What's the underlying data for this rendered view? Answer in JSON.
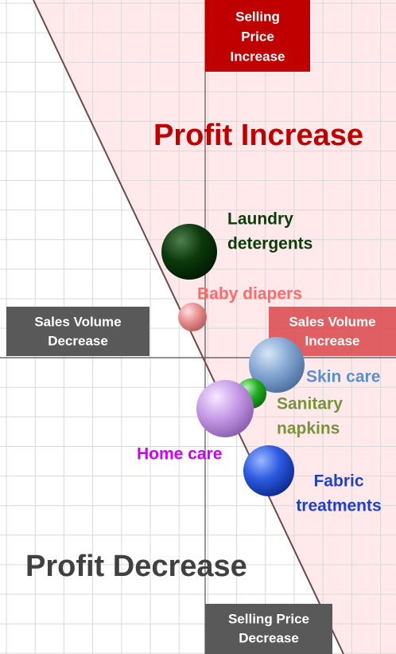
{
  "quadrants": {
    "top": [
      "Selling",
      "Price",
      "Increase"
    ],
    "bottom": [
      "Selling Price",
      "Decrease"
    ],
    "left": [
      "Sales Volume",
      "Decrease"
    ],
    "right": [
      "Sales Volume",
      "Increase"
    ],
    "gain": "Profit Increase",
    "loss": "Profit Decrease"
  },
  "bubbles": [
    {
      "label": [
        "Laundry",
        "detergents"
      ]
    },
    {
      "label": [
        "Baby diapers"
      ]
    },
    {
      "label": [
        "Skin care"
      ]
    },
    {
      "label": [
        "Sanitary",
        "napkins"
      ]
    },
    {
      "label": [
        "Home care"
      ]
    },
    {
      "label": [
        "Fabric",
        "treatments"
      ]
    }
  ]
}
